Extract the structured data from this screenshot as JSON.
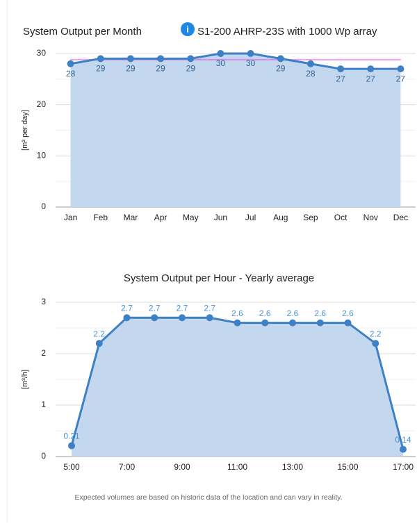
{
  "chart_data": [
    {
      "type": "area",
      "title": "System Output per Month",
      "subtitle": "S1-200 AHRP-23S with 1000 Wp array",
      "y_label": "[m³ per day]",
      "categories": [
        "Jan",
        "Feb",
        "Mar",
        "Apr",
        "May",
        "Jun",
        "Jul",
        "Aug",
        "Sep",
        "Oct",
        "Nov",
        "Dec"
      ],
      "values": [
        28,
        29,
        29,
        29,
        29,
        30,
        30,
        29,
        28,
        27,
        27,
        27
      ],
      "color": "#3d80c6",
      "fill": "#c3d8ee",
      "label_color": "#34628f",
      "label_position": "below",
      "ylim": [
        0,
        30
      ],
      "yticks": [
        0,
        10,
        20,
        30
      ],
      "minor_yticks": [
        5,
        15,
        25
      ],
      "grid": true,
      "reference_value": 28.8,
      "reference_color": "#e03ee0"
    },
    {
      "type": "area",
      "title": "System Output per Hour - Yearly average",
      "y_label": "[m³/h]",
      "x": [
        5,
        6,
        7,
        8,
        9,
        10,
        11,
        12,
        13,
        14,
        15,
        16,
        17
      ],
      "values": [
        0.21,
        2.2,
        2.7,
        2.7,
        2.7,
        2.7,
        2.6,
        2.6,
        2.6,
        2.6,
        2.6,
        2.2,
        0.14
      ],
      "color": "#3d80c6",
      "fill": "#c3d8ee",
      "label_color": "#4a92d4",
      "label_position": "above",
      "xlim": [
        5,
        17
      ],
      "xticks": [
        {
          "value": 5,
          "label": "5:00"
        },
        {
          "value": 7,
          "label": "7:00"
        },
        {
          "value": 9,
          "label": "9:00"
        },
        {
          "value": 11,
          "label": "11:00"
        },
        {
          "value": 13,
          "label": "13:00"
        },
        {
          "value": 15,
          "label": "15:00"
        },
        {
          "value": 17,
          "label": "17:00"
        }
      ],
      "ylim": [
        0,
        3
      ],
      "yticks": [
        0,
        1,
        2,
        3
      ],
      "minor_yticks": [
        0.5,
        1.5,
        2.5
      ],
      "grid": true
    }
  ],
  "footnote": "Expected volumes are based on historic data of the location and can vary in reality."
}
